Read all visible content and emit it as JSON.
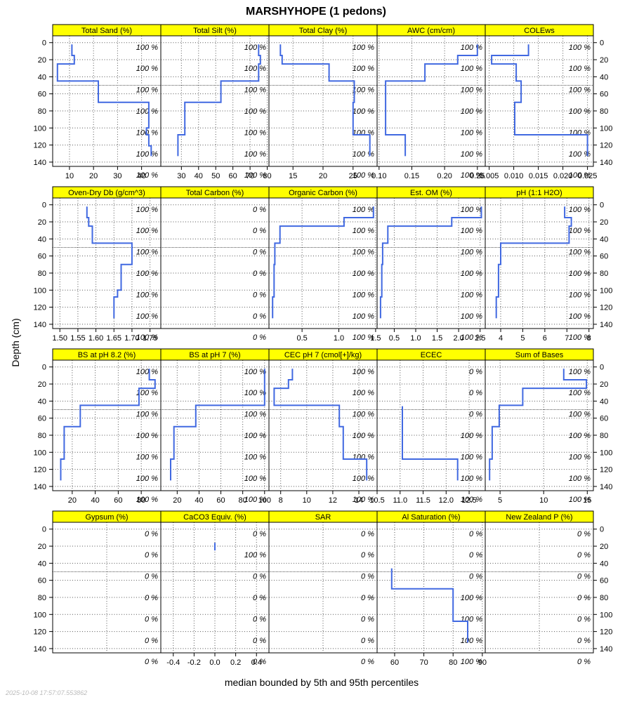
{
  "title": "MARSHYHOPE (1 pedons)",
  "ylabel": "Depth (cm)",
  "xlabel": "median bounded by 5th and 95th percentiles",
  "timestamp": "2025-10-08 17:57:07.553862",
  "colors": {
    "strip": "#ffff00",
    "line": "#4169e1",
    "grid": "#555555",
    "frame": "#000000"
  },
  "chart_data": {
    "type": "line",
    "ylim": [
      145,
      -8
    ],
    "depth_ticks": [
      0,
      20,
      40,
      60,
      80,
      100,
      120,
      140
    ],
    "panels": [
      {
        "name": "Total Sand (%)",
        "xlim": [
          3,
          48
        ],
        "xticks": [
          10,
          20,
          30,
          40
        ],
        "xtick_labels": [
          "10",
          "20",
          "30",
          "40"
        ],
        "pct_labels": [
          "100 %",
          "100 %",
          "100 %",
          "100 %",
          "100 %",
          "100 %",
          "100 %"
        ],
        "profile": [
          [
            11,
            2
          ],
          [
            11,
            15
          ],
          [
            12,
            15
          ],
          [
            12,
            25
          ],
          [
            5,
            25
          ],
          [
            5,
            45
          ],
          [
            22,
            45
          ],
          [
            22,
            70
          ],
          [
            43,
            70
          ],
          [
            43,
            100
          ],
          [
            42,
            100
          ],
          [
            42,
            108
          ],
          [
            43,
            108
          ],
          [
            43,
            121
          ],
          [
            44,
            121
          ],
          [
            44,
            133
          ]
        ]
      },
      {
        "name": "Total Silt (%)",
        "xlim": [
          18,
          81
        ],
        "xticks": [
          30,
          40,
          50,
          60,
          70,
          80
        ],
        "xtick_labels": [
          "30",
          "40",
          "50",
          "60",
          "70",
          "80"
        ],
        "pct_labels": [
          "100 %",
          "100 %",
          "100 %",
          "100 %",
          "100 %",
          "100 %",
          "100 %"
        ],
        "profile": [
          [
            75,
            2
          ],
          [
            75,
            15
          ],
          [
            76,
            15
          ],
          [
            76,
            25
          ],
          [
            75,
            25
          ],
          [
            75,
            45
          ],
          [
            53,
            45
          ],
          [
            53,
            70
          ],
          [
            32,
            70
          ],
          [
            32,
            108
          ],
          [
            28,
            108
          ],
          [
            28,
            133
          ]
        ]
      },
      {
        "name": "Total Clay (%)",
        "xlim": [
          11,
          29
        ],
        "xticks": [
          15,
          20,
          25
        ],
        "xtick_labels": [
          "15",
          "20",
          "25"
        ],
        "pct_labels": [
          "100 %",
          "100 %",
          "100 %",
          "100 %",
          "100 %",
          "100 %",
          "100 %"
        ],
        "profile": [
          [
            12.9,
            2
          ],
          [
            12.9,
            15
          ],
          [
            13.2,
            15
          ],
          [
            13.2,
            25
          ],
          [
            21,
            25
          ],
          [
            21,
            45
          ],
          [
            25.2,
            45
          ],
          [
            25.2,
            70
          ],
          [
            25,
            70
          ],
          [
            25,
            108
          ],
          [
            27.8,
            108
          ],
          [
            27.8,
            133
          ]
        ]
      },
      {
        "name": "AWC (cm/cm)",
        "xlim": [
          0.097,
          0.262
        ],
        "xticks": [
          0.1,
          0.15,
          0.2,
          0.25
        ],
        "xtick_labels": [
          "0.10",
          "0.15",
          "0.20",
          "0.25"
        ],
        "pct_labels": [
          "100 %",
          "100 %",
          "100 %",
          "100 %",
          "100 %",
          "100 %",
          "100 %"
        ],
        "profile": [
          [
            0.25,
            2
          ],
          [
            0.25,
            15
          ],
          [
            0.22,
            15
          ],
          [
            0.22,
            25
          ],
          [
            0.17,
            25
          ],
          [
            0.17,
            45
          ],
          [
            0.11,
            45
          ],
          [
            0.11,
            108
          ],
          [
            0.14,
            108
          ],
          [
            0.14,
            133
          ]
        ]
      },
      {
        "name": "COLEws",
        "xlim": [
          0.0042,
          0.0262
        ],
        "xticks": [
          0.005,
          0.01,
          0.015,
          0.02,
          0.025
        ],
        "xtick_labels": [
          "0.005",
          "0.010",
          "0.015",
          "0.020",
          "0.025"
        ],
        "pct_labels": [
          "100 %",
          "100 %",
          "100 %",
          "100 %",
          "100 %",
          "100 %",
          "100 %"
        ],
        "profile": [
          [
            0.013,
            2
          ],
          [
            0.013,
            15
          ],
          [
            0.0055,
            15
          ],
          [
            0.0055,
            25
          ],
          [
            0.0105,
            25
          ],
          [
            0.0105,
            45
          ],
          [
            0.0115,
            45
          ],
          [
            0.0115,
            70
          ],
          [
            0.0102,
            70
          ],
          [
            0.0102,
            108
          ],
          [
            0.025,
            108
          ],
          [
            0.025,
            133
          ]
        ]
      },
      {
        "name": "Oven-Dry Db (g/cm^3)",
        "xlim": [
          1.48,
          1.78
        ],
        "xticks": [
          1.5,
          1.55,
          1.6,
          1.65,
          1.7,
          1.75
        ],
        "xtick_labels": [
          "1.50",
          "1.55",
          "1.60",
          "1.65",
          "1.70",
          "1.75"
        ],
        "pct_labels": [
          "100 %",
          "100 %",
          "100 %",
          "100 %",
          "100 %",
          "100 %",
          "100 %"
        ],
        "profile": [
          [
            1.575,
            2
          ],
          [
            1.575,
            15
          ],
          [
            1.58,
            15
          ],
          [
            1.58,
            25
          ],
          [
            1.59,
            25
          ],
          [
            1.59,
            45
          ],
          [
            1.7,
            45
          ],
          [
            1.7,
            70
          ],
          [
            1.67,
            70
          ],
          [
            1.67,
            100
          ],
          [
            1.66,
            100
          ],
          [
            1.66,
            108
          ],
          [
            1.65,
            108
          ],
          [
            1.65,
            133
          ]
        ]
      },
      {
        "name": "Total Carbon (%)",
        "xlim": [
          0,
          1
        ],
        "xticks": [],
        "xtick_labels": [],
        "pct_labels": [
          "0 %",
          "0 %",
          "0 %",
          "0 %",
          "0 %",
          "0 %",
          "0 %"
        ],
        "profile": []
      },
      {
        "name": "Organic Carbon (%)",
        "xlim": [
          0.05,
          1.52
        ],
        "xticks": [
          0.5,
          1.0,
          1.5
        ],
        "xtick_labels": [
          "0.5",
          "1.0",
          "1.5"
        ],
        "pct_labels": [
          "100 %",
          "100 %",
          "100 %",
          "100 %",
          "100 %",
          "100 %",
          "100 %"
        ],
        "profile": [
          [
            1.47,
            2
          ],
          [
            1.47,
            15
          ],
          [
            1.07,
            15
          ],
          [
            1.07,
            25
          ],
          [
            0.2,
            25
          ],
          [
            0.2,
            45
          ],
          [
            0.13,
            45
          ],
          [
            0.13,
            70
          ],
          [
            0.12,
            70
          ],
          [
            0.12,
            108
          ],
          [
            0.1,
            108
          ],
          [
            0.1,
            133
          ]
        ]
      },
      {
        "name": "Est. OM (%)",
        "xlim": [
          0.1,
          2.62
        ],
        "xticks": [
          0.5,
          1.0,
          1.5,
          2.0,
          2.5
        ],
        "xtick_labels": [
          "0.5",
          "1.0",
          "1.5",
          "2.0",
          "2.5"
        ],
        "pct_labels": [
          "100 %",
          "100 %",
          "100 %",
          "100 %",
          "100 %",
          "100 %",
          "100 %"
        ],
        "profile": [
          [
            2.53,
            2
          ],
          [
            2.53,
            15
          ],
          [
            1.84,
            15
          ],
          [
            1.84,
            25
          ],
          [
            0.35,
            25
          ],
          [
            0.35,
            45
          ],
          [
            0.23,
            45
          ],
          [
            0.23,
            70
          ],
          [
            0.21,
            70
          ],
          [
            0.21,
            108
          ],
          [
            0.18,
            108
          ],
          [
            0.18,
            133
          ]
        ]
      },
      {
        "name": "pH (1:1 H2O)",
        "xlim": [
          3.3,
          8.2
        ],
        "xticks": [
          4,
          5,
          6,
          7,
          8
        ],
        "xtick_labels": [
          "4",
          "5",
          "6",
          "7",
          "8"
        ],
        "pct_labels": [
          "100 %",
          "100 %",
          "100 %",
          "100 %",
          "100 %",
          "100 %",
          "100 %"
        ],
        "profile": [
          [
            6.9,
            2
          ],
          [
            6.9,
            15
          ],
          [
            7.2,
            15
          ],
          [
            7.2,
            25
          ],
          [
            7.1,
            25
          ],
          [
            7.1,
            45
          ],
          [
            4.0,
            45
          ],
          [
            4.0,
            70
          ],
          [
            3.9,
            70
          ],
          [
            3.9,
            108
          ],
          [
            3.8,
            108
          ],
          [
            3.8,
            133
          ]
        ]
      },
      {
        "name": "BS at pH 8.2 (%)",
        "xlim": [
          3,
          97
        ],
        "xticks": [
          20,
          40,
          60,
          80
        ],
        "xtick_labels": [
          "20",
          "40",
          "60",
          "80"
        ],
        "pct_labels": [
          "100 %",
          "100 %",
          "100 %",
          "100 %",
          "100 %",
          "100 %",
          "100 %"
        ],
        "profile": [
          [
            87,
            2
          ],
          [
            87,
            15
          ],
          [
            92,
            15
          ],
          [
            92,
            25
          ],
          [
            78,
            25
          ],
          [
            78,
            45
          ],
          [
            27,
            45
          ],
          [
            27,
            70
          ],
          [
            13,
            70
          ],
          [
            13,
            108
          ],
          [
            10,
            108
          ],
          [
            10,
            133
          ]
        ]
      },
      {
        "name": "BS at pH 7 (%)",
        "xlim": [
          5,
          104
        ],
        "xticks": [
          20,
          40,
          60,
          80,
          100
        ],
        "xtick_labels": [
          "20",
          "40",
          "60",
          "80",
          "100"
        ],
        "pct_labels": [
          "100 %",
          "100 %",
          "100 %",
          "100 %",
          "100 %",
          "100 %",
          "100 %"
        ],
        "profile": [
          [
            100,
            2
          ],
          [
            100,
            45
          ],
          [
            37,
            45
          ],
          [
            37,
            70
          ],
          [
            17,
            70
          ],
          [
            17,
            108
          ],
          [
            14,
            108
          ],
          [
            14,
            133
          ]
        ]
      },
      {
        "name": "CEC pH 7 (cmol[+]/kg)",
        "xlim": [
          7.1,
          15.4
        ],
        "xticks": [
          8,
          10,
          12,
          14
        ],
        "xtick_labels": [
          "8",
          "10",
          "12",
          "14"
        ],
        "pct_labels": [
          "100 %",
          "100 %",
          "100 %",
          "100 %",
          "100 %",
          "100 %",
          "100 %"
        ],
        "profile": [
          [
            8.9,
            2
          ],
          [
            8.9,
            15
          ],
          [
            8.6,
            15
          ],
          [
            8.6,
            25
          ],
          [
            7.5,
            25
          ],
          [
            7.5,
            45
          ],
          [
            12.5,
            45
          ],
          [
            12.5,
            70
          ],
          [
            12.8,
            70
          ],
          [
            12.8,
            108
          ],
          [
            14.6,
            108
          ],
          [
            14.6,
            133
          ]
        ]
      },
      {
        "name": "ECEC",
        "xlim": [
          10.5,
          12.85
        ],
        "xticks": [
          10.5,
          11.0,
          11.5,
          12.0,
          12.5
        ],
        "xtick_labels": [
          "10.5",
          "11.0",
          "11.5",
          "12.0",
          "12.5"
        ],
        "pct_labels": [
          "0 %",
          "0 %",
          "0 %",
          "100 %",
          "100 %",
          "100 %",
          "100 %"
        ],
        "profile": [
          [
            11.05,
            46
          ],
          [
            11.05,
            108
          ],
          [
            12.25,
            108
          ],
          [
            12.25,
            133
          ]
        ]
      },
      {
        "name": "Sum of Bases",
        "xlim": [
          3.3,
          15.7
        ],
        "xticks": [
          5,
          10,
          15
        ],
        "xtick_labels": [
          "5",
          "10",
          "15"
        ],
        "pct_labels": [
          "100 %",
          "100 %",
          "100 %",
          "100 %",
          "100 %",
          "100 %",
          "100 %"
        ],
        "profile": [
          [
            12.3,
            2
          ],
          [
            12.3,
            15
          ],
          [
            14.9,
            15
          ],
          [
            14.9,
            25
          ],
          [
            7.6,
            25
          ],
          [
            7.6,
            45
          ],
          [
            4.9,
            45
          ],
          [
            4.9,
            70
          ],
          [
            4.1,
            70
          ],
          [
            4.1,
            108
          ],
          [
            3.8,
            108
          ],
          [
            3.8,
            133
          ]
        ]
      },
      {
        "name": "Gypsum (%)",
        "xlim": [
          0,
          1
        ],
        "xticks": [],
        "xtick_labels": [],
        "pct_labels": [
          "0 %",
          "0 %",
          "0 %",
          "0 %",
          "0 %",
          "0 %",
          "0 %"
        ],
        "profile": []
      },
      {
        "name": "CaCO3 Equiv. (%)",
        "xlim": [
          -0.52,
          0.52
        ],
        "xticks": [
          -0.4,
          -0.2,
          0.0,
          0.2,
          0.4
        ],
        "xtick_labels": [
          "-0.4",
          "-0.2",
          "0.0",
          "0.2",
          "0.4"
        ],
        "pct_labels": [
          "0 %",
          "100 %",
          "0 %",
          "0 %",
          "0 %",
          "0 %",
          "0 %"
        ],
        "profile": [
          [
            0,
            16
          ],
          [
            0,
            25
          ]
        ]
      },
      {
        "name": "SAR",
        "xlim": [
          0,
          1
        ],
        "xticks": [],
        "xtick_labels": [],
        "pct_labels": [
          "0 %",
          "0 %",
          "0 %",
          "0 %",
          "0 %",
          "0 %",
          "0 %"
        ],
        "profile": []
      },
      {
        "name": "Al Saturation (%)",
        "xlim": [
          54,
          91
        ],
        "xticks": [
          60,
          70,
          80,
          90
        ],
        "xtick_labels": [
          "60",
          "70",
          "80",
          "90"
        ],
        "pct_labels": [
          "0 %",
          "0 %",
          "0 %",
          "100 %",
          "100 %",
          "100 %",
          "100 %"
        ],
        "profile": [
          [
            59,
            46
          ],
          [
            59,
            70
          ],
          [
            80,
            70
          ],
          [
            80,
            108
          ],
          [
            85,
            108
          ],
          [
            85,
            133
          ]
        ]
      },
      {
        "name": "New Zealand P (%)",
        "xlim": [
          0,
          1
        ],
        "xticks": [],
        "xtick_labels": [],
        "pct_labels": [
          "0 %",
          "0 %",
          "0 %",
          "0 %",
          "0 %",
          "0 %",
          "0 %"
        ],
        "profile": []
      }
    ]
  }
}
